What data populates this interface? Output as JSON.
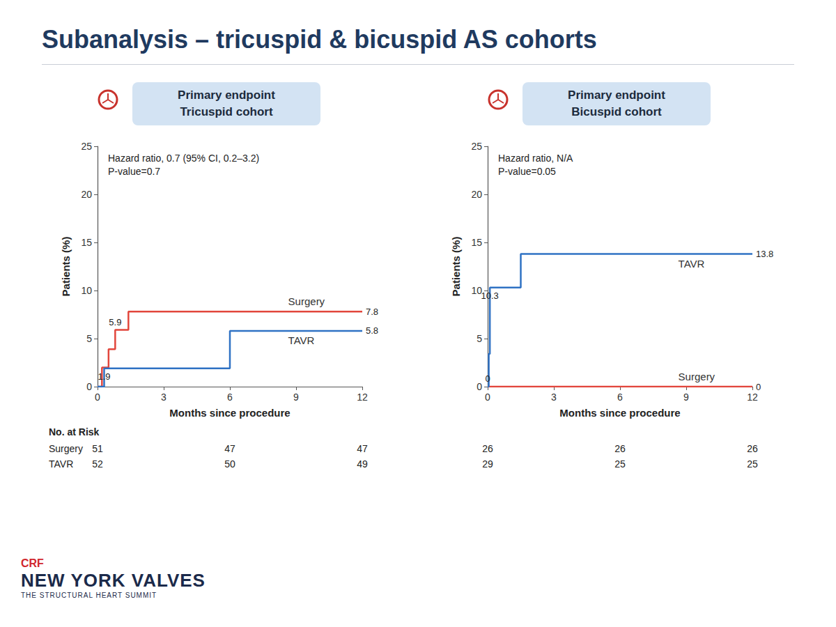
{
  "slide": {
    "title": "Subanalysis – tricuspid & bicuspid AS cohorts",
    "branding": {
      "logo": "CRF",
      "name": "NEW YORK VALVES",
      "tagline": "THE STRUCTURAL HEART SUMMIT"
    }
  },
  "chart_data": [
    {
      "type": "line",
      "title": "Primary endpoint",
      "subtitle": "Tricuspid cohort",
      "annotations": [
        "Hazard ratio, 0.7 (95% CI, 0.2–3.2)",
        "P-value=0.7"
      ],
      "xlabel": "Months since procedure",
      "ylabel": "Patients (%)",
      "xlim": [
        0,
        12
      ],
      "xticks": [
        0,
        3,
        6,
        9,
        12
      ],
      "ylim": [
        0,
        25
      ],
      "yticks": [
        0,
        5,
        10,
        15,
        20,
        25
      ],
      "grid": false,
      "legend": "inline",
      "line_style": "step",
      "data_labels": true,
      "series": [
        {
          "name": "Surgery",
          "color": "#e2463c",
          "x": [
            0,
            0.2,
            0.5,
            0.8,
            1.4,
            12
          ],
          "values": [
            0,
            2.0,
            3.9,
            5.9,
            7.8,
            7.8
          ],
          "value_labels": [
            null,
            null,
            null,
            "5.9",
            null,
            "7.8"
          ]
        },
        {
          "name": "TAVR",
          "color": "#2f72c4",
          "x": [
            0,
            0.3,
            6,
            12
          ],
          "values": [
            0,
            1.9,
            5.8,
            5.8
          ],
          "value_labels": [
            null,
            "1.9",
            null,
            "5.8"
          ]
        }
      ],
      "risk_table": {
        "title": "No. at Risk",
        "times": [
          0,
          6,
          12
        ],
        "rows": [
          {
            "name": "Surgery",
            "values": [
              51,
              47,
              47
            ]
          },
          {
            "name": "TAVR",
            "values": [
              52,
              50,
              49
            ]
          }
        ]
      }
    },
    {
      "type": "line",
      "title": "Primary endpoint",
      "subtitle": "Bicuspid cohort",
      "annotations": [
        "Hazard ratio, N/A",
        "P-value=0.05"
      ],
      "xlabel": "Months since procedure",
      "ylabel": "Patients (%)",
      "xlim": [
        0,
        12
      ],
      "xticks": [
        0,
        3,
        6,
        9,
        12
      ],
      "ylim": [
        0,
        25
      ],
      "yticks": [
        0,
        5,
        10,
        15,
        20,
        25
      ],
      "grid": false,
      "legend": "inline",
      "line_style": "step",
      "data_labels": true,
      "series": [
        {
          "name": "Surgery",
          "color": "#e2463c",
          "x": [
            0,
            12
          ],
          "values": [
            0,
            0
          ],
          "value_labels": [
            "0",
            "0"
          ]
        },
        {
          "name": "TAVR",
          "color": "#2f72c4",
          "x": [
            0,
            0.05,
            0.1,
            1.5,
            12
          ],
          "values": [
            0,
            3.4,
            10.3,
            13.8,
            13.8
          ],
          "value_labels": [
            null,
            null,
            "10.3",
            null,
            "13.8"
          ]
        }
      ],
      "risk_table": {
        "times": [
          0,
          6,
          12
        ],
        "rows": [
          {
            "values": [
              26,
              26,
              26
            ]
          },
          {
            "values": [
              29,
              25,
              25
            ]
          }
        ]
      }
    }
  ]
}
